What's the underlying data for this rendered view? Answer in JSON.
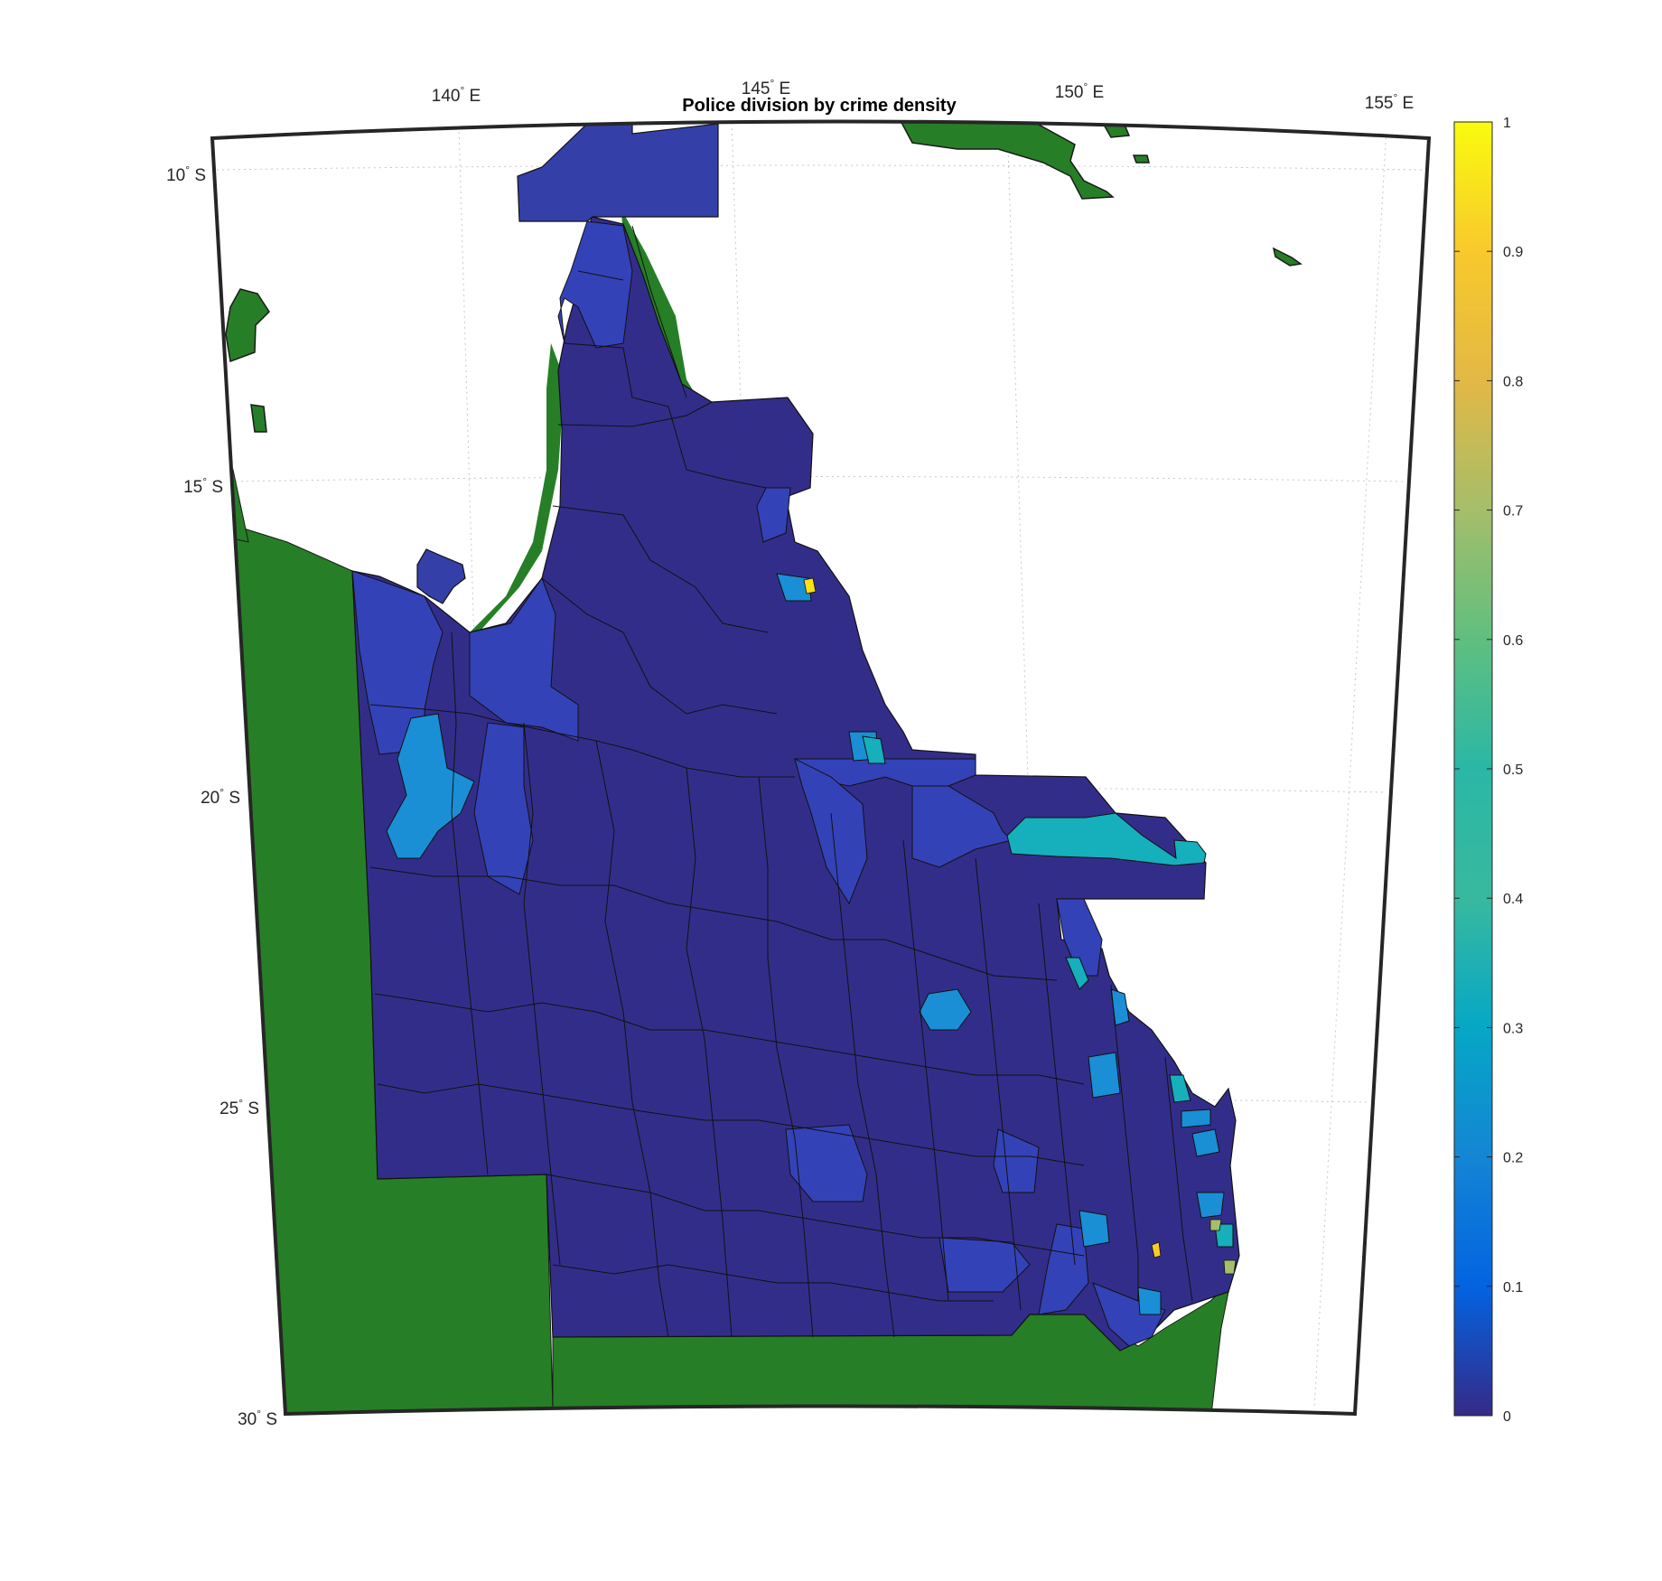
{
  "title": "Police division by crime density",
  "colors": {
    "land": "#267f26",
    "ocean": "#ffffff",
    "frame": "#262626",
    "division_base": "#332d8a",
    "division_mid": "#3442b8",
    "division_light": "#1a8fd6",
    "division_cyan": "#15b0bb",
    "division_bright": "#fce114"
  },
  "graticule": {
    "longitude_labels": [
      {
        "value": "140",
        "suffix": "E"
      },
      {
        "value": "145",
        "suffix": "E"
      },
      {
        "value": "150",
        "suffix": "E"
      },
      {
        "value": "155",
        "suffix": "E"
      }
    ],
    "latitude_labels": [
      {
        "value": "10",
        "suffix": "S"
      },
      {
        "value": "15",
        "suffix": "S"
      },
      {
        "value": "20",
        "suffix": "S"
      },
      {
        "value": "25",
        "suffix": "S"
      },
      {
        "value": "30",
        "suffix": "S"
      }
    ]
  },
  "colorbar": {
    "colormap": "parula",
    "min": 0,
    "max": 1,
    "ticks": [
      "0",
      "0.1",
      "0.2",
      "0.3",
      "0.4",
      "0.5",
      "0.6",
      "0.7",
      "0.8",
      "0.9",
      "1"
    ]
  }
}
